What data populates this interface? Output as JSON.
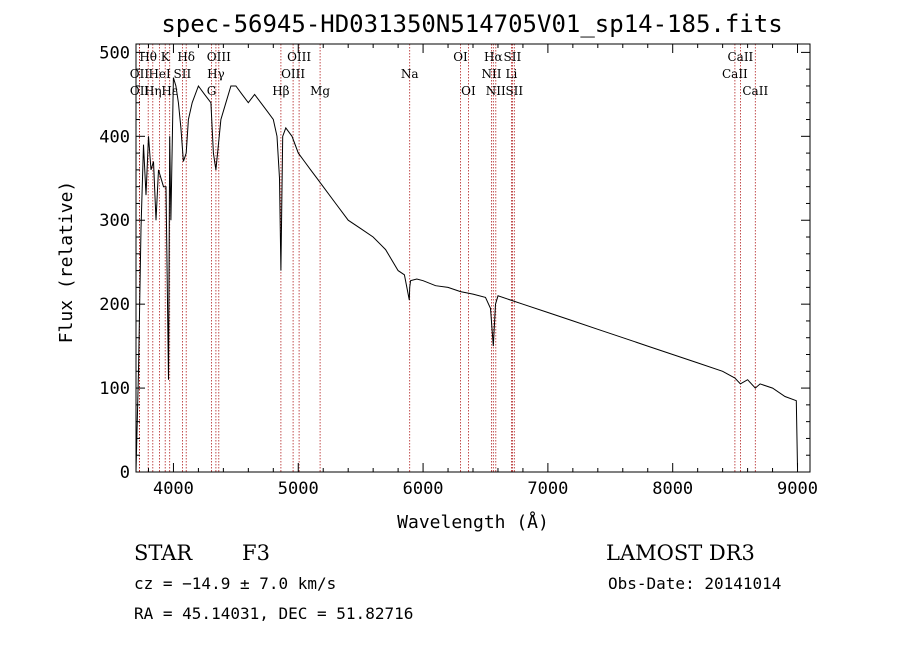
{
  "chart_data": {
    "type": "line",
    "title": "spec-56945-HD031350N514705V01_sp14-185.fits",
    "xlabel": "Wavelength (Å)",
    "ylabel": "Flux (relative)",
    "xlim": [
      3700,
      9100
    ],
    "ylim": [
      0,
      510
    ],
    "xticks": [
      4000,
      5000,
      6000,
      7000,
      8000,
      9000
    ],
    "yticks": [
      0,
      100,
      200,
      300,
      400,
      500
    ],
    "series": [
      {
        "name": "spectrum",
        "x": [
          3700,
          3720,
          3740,
          3760,
          3780,
          3800,
          3820,
          3840,
          3860,
          3880,
          3900,
          3920,
          3940,
          3960,
          3970,
          3980,
          4000,
          4020,
          4040,
          4060,
          4080,
          4102,
          4120,
          4150,
          4200,
          4250,
          4300,
          4320,
          4340,
          4360,
          4380,
          4420,
          4460,
          4500,
          4550,
          4600,
          4650,
          4700,
          4750,
          4800,
          4830,
          4850,
          4861,
          4875,
          4900,
          4950,
          5000,
          5050,
          5100,
          5150,
          5200,
          5300,
          5400,
          5500,
          5600,
          5700,
          5800,
          5850,
          5890,
          5893,
          5900,
          5950,
          6000,
          6100,
          6200,
          6300,
          6400,
          6500,
          6540,
          6563,
          6580,
          6600,
          6700,
          6800,
          7000,
          7200,
          7400,
          7600,
          7800,
          8000,
          8200,
          8400,
          8498,
          8542,
          8600,
          8662,
          8700,
          8800,
          8900,
          8990,
          9000
        ],
        "y": [
          0,
          120,
          290,
          390,
          330,
          400,
          360,
          370,
          300,
          360,
          350,
          340,
          340,
          110,
          400,
          300,
          470,
          460,
          440,
          410,
          370,
          380,
          420,
          440,
          460,
          450,
          440,
          380,
          360,
          390,
          420,
          440,
          460,
          460,
          450,
          440,
          450,
          440,
          430,
          420,
          400,
          350,
          240,
          400,
          410,
          400,
          380,
          370,
          360,
          350,
          340,
          320,
          300,
          290,
          280,
          265,
          240,
          235,
          205,
          220,
          228,
          230,
          228,
          222,
          220,
          215,
          212,
          208,
          195,
          150,
          200,
          210,
          205,
          200,
          190,
          180,
          170,
          160,
          150,
          140,
          130,
          120,
          112,
          105,
          110,
          100,
          105,
          100,
          90,
          85,
          5
        ]
      }
    ],
    "line_markers": [
      {
        "label": "Hθ",
        "x": 3798,
        "row": 1
      },
      {
        "label": "OII",
        "x": 3727,
        "row": 2
      },
      {
        "label": "OII",
        "x": 3729,
        "row": 3
      },
      {
        "label": "K",
        "x": 3934,
        "row": 1
      },
      {
        "label": "HeI",
        "x": 3889,
        "row": 2
      },
      {
        "label": "Hη",
        "x": 3835,
        "row": 3
      },
      {
        "label": "Hδ",
        "x": 4102,
        "row": 1
      },
      {
        "label": "SII",
        "x": 4072,
        "row": 2
      },
      {
        "label": "Hε",
        "x": 3970,
        "row": 3
      },
      {
        "label": "OIII",
        "x": 4363,
        "row": 1
      },
      {
        "label": "Hγ",
        "x": 4340,
        "row": 2
      },
      {
        "label": "G",
        "x": 4305,
        "row": 3
      },
      {
        "label": "Hβ",
        "x": 4861,
        "row": 3
      },
      {
        "label": "OIII",
        "x": 5007,
        "row": 1
      },
      {
        "label": "OIII",
        "x": 4959,
        "row": 2
      },
      {
        "label": "Mg",
        "x": 5175,
        "row": 3
      },
      {
        "label": "Na",
        "x": 5893,
        "row": 2
      },
      {
        "label": "OI",
        "x": 6300,
        "row": 1
      },
      {
        "label": "OI",
        "x": 6363,
        "row": 3
      },
      {
        "label": "Hα",
        "x": 6563,
        "row": 1
      },
      {
        "label": "NII",
        "x": 6548,
        "row": 2
      },
      {
        "label": "NII",
        "x": 6583,
        "row": 3
      },
      {
        "label": "SII",
        "x": 6716,
        "row": 1
      },
      {
        "label": "Li",
        "x": 6708,
        "row": 2
      },
      {
        "label": "SII",
        "x": 6731,
        "row": 3
      },
      {
        "label": "CaII",
        "x": 8542,
        "row": 1
      },
      {
        "label": "CaII",
        "x": 8498,
        "row": 2
      },
      {
        "label": "CaII",
        "x": 8662,
        "row": 3
      }
    ]
  },
  "info": {
    "class": "STAR",
    "subclass": "F3",
    "survey": "LAMOST DR3",
    "cz": "cz = −14.9 ± 7.0 km/s",
    "obs_date": "Obs-Date: 20141014",
    "coords": "RA =  45.14031, DEC =  51.82716"
  },
  "colors": {
    "line": "#000000",
    "marker": "#b22222",
    "axis": "#000000"
  }
}
